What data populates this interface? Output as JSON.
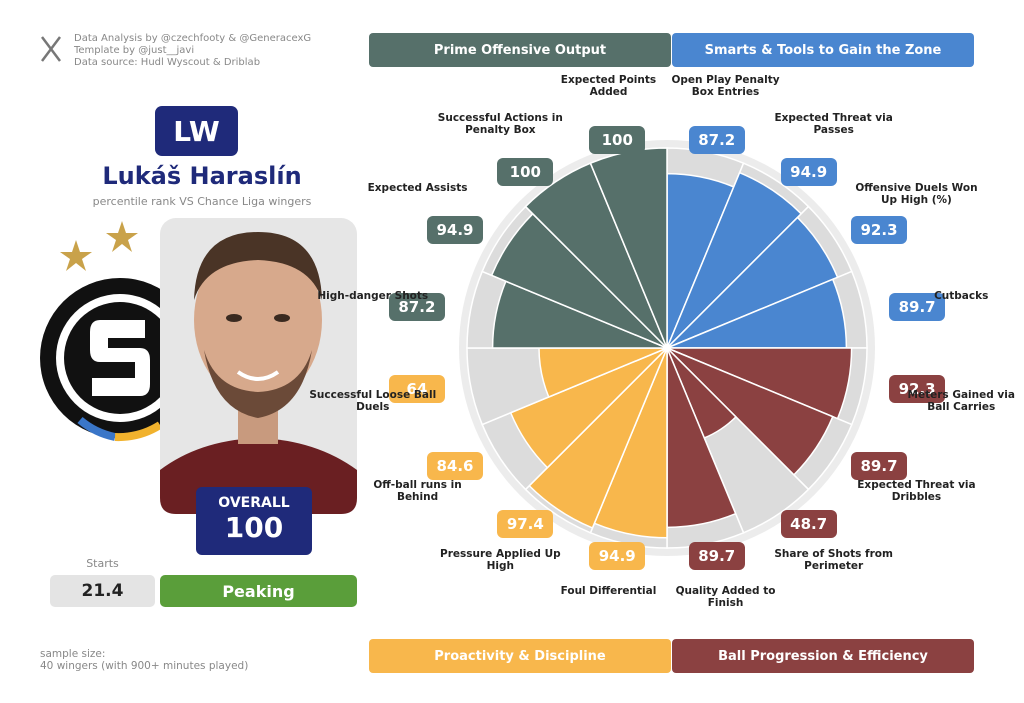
{
  "header": {
    "credits": [
      "Data Analysis by @czechfooty & @GeneracexG",
      "Template by @just__javi",
      "Data source: Hudl Wyscout & Driblab"
    ]
  },
  "player": {
    "position": "LW",
    "name": "Lukáš Haraslín",
    "subtitle": "percentile rank VS Chance Liga wingers",
    "overall_label": "OVERALL",
    "overall": 100,
    "starts_label": "Starts",
    "starts": 21.4,
    "status": "Peaking"
  },
  "footer": {
    "sample_size": [
      "sample size:",
      "40 wingers (with 900+ minutes played)"
    ]
  },
  "chart_data": {
    "type": "pizza",
    "rlim": [
      0,
      100
    ],
    "series": [
      {
        "name": "Smarts & Tools to Gain the Zone",
        "color": "#4a86d0",
        "categories": [
          "Open Play Penalty Box Entries",
          "Expected Threat via Passes",
          "Offensive Duels Won Up High (%)",
          "Cutbacks"
        ],
        "values": [
          87.2,
          94.9,
          92.3,
          89.7
        ]
      },
      {
        "name": "Ball Progression & Efficiency",
        "color": "#8b4141",
        "categories": [
          "Meters Gained via Ball Carries",
          "Expected Threat via Dribbles",
          "Share of Shots from Perimeter",
          "Quality Added to Finish"
        ],
        "values": [
          92.3,
          89.7,
          48.7,
          89.7
        ]
      },
      {
        "name": "Proactivity & Discipline",
        "color": "#f8b74c",
        "categories": [
          "Foul Differential",
          "Pressure Applied Up High",
          "Off-ball runs in Behind",
          "Successful Loose Ball Duels"
        ],
        "values": [
          94.9,
          97.4,
          84.6,
          64
        ]
      },
      {
        "name": "Prime Offensive Output",
        "color": "#56706a",
        "categories": [
          "High-danger Shots",
          "Expected Assists",
          "Successful Actions in Penalty Box",
          "Expected Points Added"
        ],
        "values": [
          87.2,
          94.9,
          100,
          100
        ]
      }
    ]
  }
}
